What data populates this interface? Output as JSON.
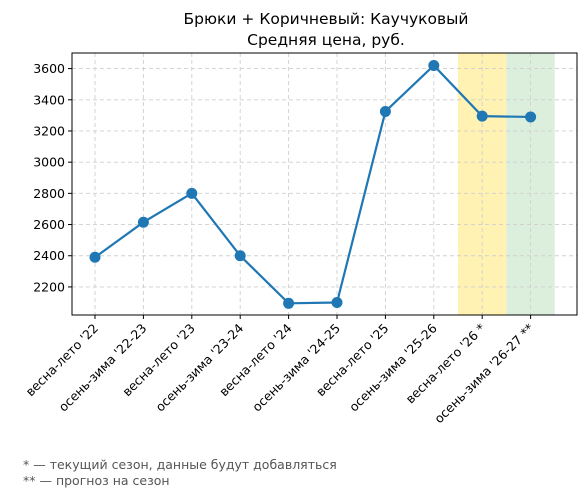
{
  "chart_data": {
    "type": "line",
    "title": "Брюки + Коричневый: Каучуковый",
    "subtitle": "Средняя цена, руб.",
    "xlabel": "",
    "ylabel": "",
    "categories": [
      "весна-лето '22",
      "осень-зима '22-23",
      "весна-лето '23",
      "осень-зима '23-24",
      "весна-лето '24",
      "осень-зима '24-25",
      "весна-лето '25",
      "осень-зима '25-26",
      "весна-лето '26 *",
      "осень-зима '26-27 **"
    ],
    "values": [
      2390,
      2615,
      2800,
      2400,
      2095,
      2100,
      3325,
      3620,
      3295,
      3290
    ],
    "yticks": [
      2200,
      2400,
      2600,
      2800,
      3000,
      3200,
      3400,
      3600
    ],
    "ylim": [
      2020,
      3700
    ],
    "grid": true,
    "line_color": "#1f77b4",
    "highlights": [
      {
        "category_index": 8,
        "color": "#fff2b3",
        "meaning": "current season"
      },
      {
        "category_index": 9,
        "color": "#dcefdc",
        "meaning": "forecast"
      }
    ]
  },
  "footnotes": [
    "* — текущий сезон, данные будут добавляться",
    "** — прогноз на сезон"
  ]
}
